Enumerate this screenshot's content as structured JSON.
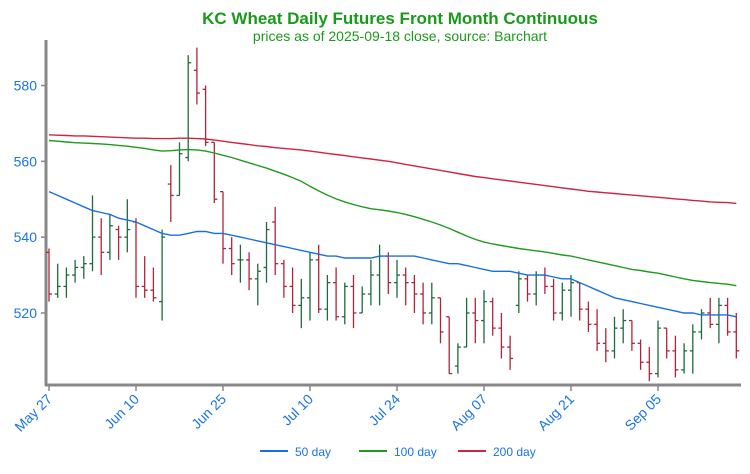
{
  "chart_data": {
    "type": "ohlc",
    "title": "KC Wheat Daily Futures Front Month Continuous",
    "subtitle": "prices as of 2025-09-18 close, source: Barchart",
    "categories": [
      "May 27",
      null,
      null,
      null,
      null,
      null,
      null,
      null,
      null,
      null,
      "Jun 10",
      null,
      null,
      null,
      null,
      null,
      null,
      null,
      null,
      null,
      "Jun 25",
      null,
      null,
      null,
      null,
      null,
      null,
      null,
      null,
      null,
      "Jul 10",
      null,
      null,
      null,
      null,
      null,
      null,
      null,
      null,
      null,
      "Jul 24",
      null,
      null,
      null,
      null,
      null,
      null,
      null,
      null,
      null,
      "Aug 07",
      null,
      null,
      null,
      null,
      null,
      null,
      null,
      null,
      null,
      "Aug 21",
      null,
      null,
      null,
      null,
      null,
      null,
      null,
      null,
      null,
      "Sep 05",
      null,
      null,
      null,
      null,
      null,
      null,
      null,
      null,
      null
    ],
    "ohlc": {
      "open": [
        536,
        525,
        527,
        530,
        532,
        533,
        540,
        536,
        542,
        540,
        544,
        527,
        526,
        523,
        554,
        551,
        561,
        584,
        579,
        565,
        552,
        537,
        534,
        534,
        529,
        532,
        544,
        533,
        527,
        522,
        524,
        534,
        521,
        528,
        519,
        527,
        520,
        525,
        530,
        535,
        528,
        530,
        528,
        525,
        520,
        524,
        519,
        506,
        511,
        520,
        518,
        523,
        516,
        511,
        522,
        529,
        525,
        530,
        527,
        520,
        526,
        528,
        521,
        517,
        512,
        510,
        516,
        518,
        512,
        507,
        504,
        516,
        510,
        505,
        510,
        515,
        520,
        517,
        522,
        515
      ],
      "high": [
        537,
        533,
        532,
        534,
        535,
        551,
        545,
        546,
        543,
        550,
        545,
        535,
        532,
        542,
        559,
        565,
        588,
        590,
        580,
        565,
        552,
        540,
        538,
        536,
        533,
        544,
        548,
        534,
        532,
        529,
        536,
        538,
        530,
        532,
        528,
        530,
        527,
        534,
        538,
        536,
        534,
        532,
        530,
        528,
        528,
        524,
        519,
        512,
        524,
        524,
        526,
        524,
        520,
        514,
        531,
        530,
        531,
        532,
        529,
        528,
        530,
        528,
        523,
        521,
        516,
        519,
        521,
        518,
        513,
        511,
        518,
        516,
        514,
        512,
        517,
        521,
        524,
        524,
        524,
        520
      ],
      "low": [
        523,
        524,
        524,
        528,
        529,
        531,
        530,
        534,
        534,
        536,
        524,
        524,
        523,
        518,
        544,
        551,
        560,
        575,
        564,
        549,
        533,
        530,
        528,
        526,
        522,
        528,
        530,
        524,
        520,
        516,
        518,
        520,
        518,
        518,
        517,
        516,
        520,
        522,
        522,
        525,
        524,
        522,
        520,
        517,
        517,
        512,
        504,
        504,
        511,
        512,
        512,
        514,
        508,
        505,
        520,
        523,
        522,
        525,
        518,
        518,
        519,
        518,
        515,
        510,
        507,
        508,
        512,
        510,
        505,
        502,
        503,
        508,
        503,
        504,
        504,
        513,
        516,
        512,
        514,
        508
      ],
      "close": [
        525,
        527,
        530,
        532,
        533,
        540,
        536,
        543,
        540,
        542,
        527,
        526,
        524,
        540,
        551,
        562,
        586,
        578,
        565,
        550,
        537,
        533,
        534,
        529,
        531,
        542,
        533,
        527,
        522,
        524,
        534,
        521,
        528,
        519,
        527,
        520,
        525,
        530,
        535,
        528,
        530,
        528,
        525,
        520,
        524,
        515,
        504,
        511,
        520,
        518,
        523,
        516,
        511,
        508,
        529,
        525,
        530,
        527,
        520,
        526,
        528,
        521,
        517,
        512,
        510,
        516,
        518,
        512,
        507,
        504,
        516,
        510,
        505,
        510,
        515,
        520,
        517,
        522,
        515,
        510
      ]
    },
    "up_color": "#1d6b3c",
    "down_color": "#b0243a",
    "series": [
      {
        "name": "50 day",
        "color": "#1a6fe0",
        "values": [
          552,
          551,
          550,
          549,
          548,
          547,
          546.5,
          546,
          545,
          544.5,
          544,
          543,
          542,
          541,
          540.5,
          540.5,
          541,
          541.5,
          541.5,
          541,
          541,
          540.5,
          540,
          539.5,
          539,
          538.5,
          538,
          537.5,
          537,
          536.5,
          536,
          535.5,
          535,
          535,
          534.5,
          534.5,
          534.5,
          534.5,
          535,
          535,
          535,
          535,
          535,
          534.5,
          534,
          533.5,
          533,
          533,
          532.5,
          532,
          531.5,
          531,
          531,
          531,
          530.5,
          530,
          530,
          530,
          529.5,
          529,
          529,
          528,
          527,
          526,
          525,
          524,
          523.5,
          523,
          522.5,
          522,
          521.5,
          521,
          520.5,
          520,
          520,
          519.5,
          519.5,
          519.5,
          519.5,
          519
        ]
      },
      {
        "name": "100 day",
        "color": "#1f9a1f",
        "values": [
          565.5,
          565.3,
          565.1,
          564.9,
          564.8,
          564.7,
          564.6,
          564.4,
          564.2,
          564,
          563.7,
          563.4,
          563,
          562.7,
          562.8,
          563,
          563.1,
          563,
          562.7,
          562.2,
          561.6,
          561,
          560.3,
          559.6,
          558.9,
          558.2,
          557.4,
          556.6,
          555.7,
          554.7,
          553.4,
          552.2,
          551.1,
          550.1,
          549.3,
          548.6,
          548,
          547.5,
          547.2,
          546.9,
          546.5,
          546,
          545.4,
          544.7,
          544,
          543.2,
          542.3,
          541.3,
          540.3,
          539.4,
          538.7,
          538.2,
          537.8,
          537.4,
          537,
          536.7,
          536.4,
          536.1,
          535.7,
          535.3,
          535,
          534.5,
          534,
          533.5,
          533,
          532.5,
          532,
          531.5,
          531.2,
          530.8,
          530.5,
          530,
          529.5,
          529,
          528.6,
          528.3,
          528,
          527.8,
          527.6,
          527.2
        ]
      },
      {
        "name": "200 day",
        "color": "#d0233f",
        "values": [
          567,
          566.9,
          566.8,
          566.7,
          566.7,
          566.6,
          566.5,
          566.4,
          566.3,
          566.2,
          566.1,
          566.1,
          566,
          566,
          566,
          566.1,
          566.1,
          566,
          565.9,
          565.6,
          565.3,
          565,
          564.7,
          564.4,
          564.1,
          563.9,
          563.6,
          563.4,
          563.2,
          563,
          562.7,
          562.4,
          562.1,
          561.8,
          561.5,
          561.2,
          560.9,
          560.6,
          560.3,
          560,
          559.6,
          559.2,
          558.8,
          558.4,
          558,
          557.6,
          557.2,
          556.8,
          556.4,
          556,
          555.7,
          555.4,
          555.1,
          554.8,
          554.5,
          554.2,
          553.9,
          553.6,
          553.3,
          553,
          552.7,
          552.4,
          552.1,
          551.9,
          551.7,
          551.5,
          551.3,
          551.1,
          550.9,
          550.7,
          550.5,
          550.3,
          550.1,
          549.9,
          549.7,
          549.5,
          549.3,
          549.2,
          549.1,
          548.9
        ]
      }
    ],
    "ylim": [
      501,
      592
    ],
    "yticks": [
      520,
      540,
      560,
      580
    ]
  }
}
